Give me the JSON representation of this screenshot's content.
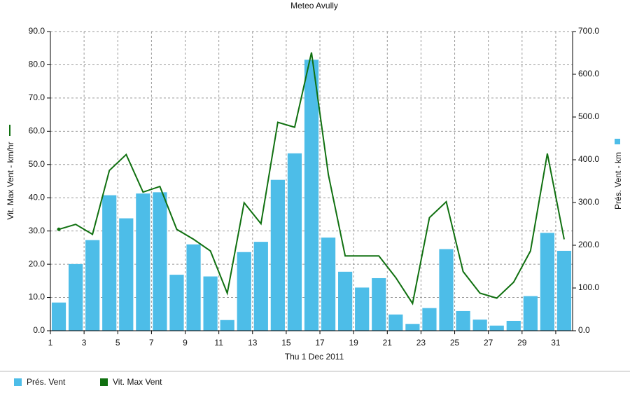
{
  "chart_data": {
    "type": "bar",
    "title": "Meteo  Avully",
    "x_label": "Thu 1 Dec 2011",
    "y_label": "Vit. Max Vent - km/hr",
    "y2_label": "Prés. Vent - km",
    "x": [
      1.5,
      2.5,
      3.5,
      4.5,
      5.5,
      6.5,
      7.5,
      8.5,
      9.5,
      10.5,
      11.5,
      12.5,
      13.5,
      14.5,
      15.5,
      16.5,
      17.5,
      18.5,
      19.5,
      20.5,
      21.5,
      22.5,
      23.5,
      24.5,
      25.5,
      26.5,
      27.5,
      28.5,
      29.5,
      30.5,
      31.5
    ],
    "xlim": [
      1,
      32
    ],
    "xticks": [
      1,
      3,
      5,
      7,
      9,
      11,
      13,
      15,
      17,
      19,
      21,
      23,
      25,
      27,
      29,
      31
    ],
    "ylim": [
      0,
      90
    ],
    "yticks": [
      {
        "value": 0,
        "label": "0.0"
      },
      {
        "value": 10,
        "label": "10.0"
      },
      {
        "value": 20,
        "label": "20.0"
      },
      {
        "value": 30,
        "label": "30.0"
      },
      {
        "value": 40,
        "label": "40.0"
      },
      {
        "value": 50,
        "label": "50.0"
      },
      {
        "value": 60,
        "label": "60.0"
      },
      {
        "value": 70,
        "label": "70.0"
      },
      {
        "value": 80,
        "label": "80.0"
      },
      {
        "value": 90,
        "label": "90.0"
      }
    ],
    "y2lim": [
      0,
      700
    ],
    "y2ticks": [
      {
        "value": 0,
        "label": "0.0"
      },
      {
        "value": 100,
        "label": "100.0"
      },
      {
        "value": 200,
        "label": "200.0"
      },
      {
        "value": 300,
        "label": "300.0"
      },
      {
        "value": 400,
        "label": "400.0"
      },
      {
        "value": 500,
        "label": "500.0"
      },
      {
        "value": 600,
        "label": "600.0"
      },
      {
        "value": 700,
        "label": "700.0"
      }
    ],
    "grid": true,
    "legend": "bottom",
    "series": [
      {
        "name": "Prés. Vent",
        "type": "bar",
        "axis": "y2",
        "color": "#4dbde8",
        "values": [
          66,
          156,
          212,
          317,
          263,
          321,
          324,
          131,
          202,
          127,
          25,
          184,
          208,
          353,
          415,
          634,
          218,
          138,
          101,
          123,
          38,
          16,
          53,
          191,
          46,
          26,
          12,
          23,
          81,
          229,
          187
        ]
      },
      {
        "name": "Vit. Max Vent",
        "type": "line",
        "color": "#107010",
        "values": [
          30.5,
          32,
          29,
          48.2,
          53,
          41.7,
          43.4,
          30.5,
          27.5,
          24,
          11.3,
          38.5,
          32.2,
          62.7,
          61.2,
          83.7,
          47,
          22.5,
          22.5,
          22.5,
          16,
          8.2,
          34,
          38.8,
          17.8,
          11.3,
          9.8,
          14.6,
          24,
          53.3,
          27.5
        ]
      }
    ]
  }
}
